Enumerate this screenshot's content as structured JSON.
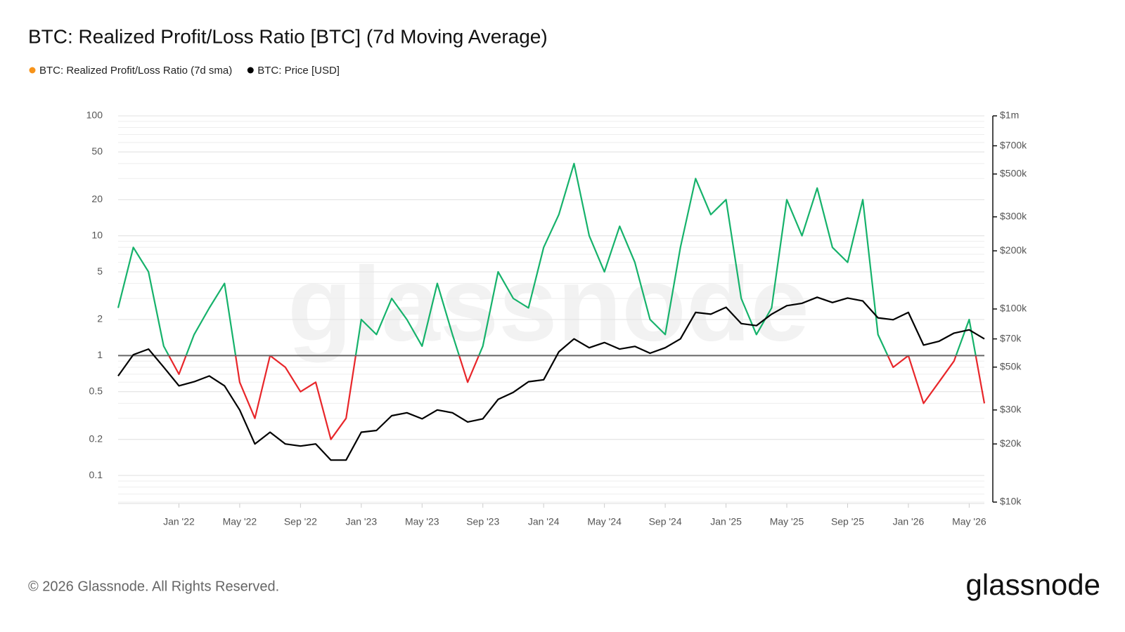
{
  "chart_data": {
    "type": "line",
    "title": "BTC: Realized Profit/Loss Ratio [BTC] (7d Moving Average)",
    "watermark": "glassnode",
    "footer": "© 2026 Glassnode. All Rights Reserved.",
    "brand": "glassnode",
    "x": [
      "2021-09",
      "2021-10",
      "2021-11",
      "2021-12",
      "2022-01",
      "2022-02",
      "2022-03",
      "2022-04",
      "2022-05",
      "2022-06",
      "2022-07",
      "2022-08",
      "2022-09",
      "2022-10",
      "2022-11",
      "2022-12",
      "2023-01",
      "2023-02",
      "2023-03",
      "2023-04",
      "2023-05",
      "2023-06",
      "2023-07",
      "2023-08",
      "2023-09",
      "2023-10",
      "2023-11",
      "2023-12",
      "2024-01",
      "2024-02",
      "2024-03",
      "2024-04",
      "2024-05",
      "2024-06",
      "2024-07",
      "2024-08",
      "2024-09",
      "2024-10",
      "2024-11",
      "2024-12",
      "2025-01",
      "2025-02",
      "2025-03",
      "2025-04",
      "2025-05",
      "2025-06",
      "2025-07",
      "2025-08",
      "2025-09",
      "2025-10",
      "2025-11",
      "2025-12",
      "2026-01",
      "2026-02",
      "2026-03",
      "2026-04",
      "2026-05",
      "2026-06"
    ],
    "xlim": [
      "2021-09",
      "2026-06"
    ],
    "xticks": [
      {
        "value": "2022-01",
        "label": "Jan '22"
      },
      {
        "value": "2022-05",
        "label": "May '22"
      },
      {
        "value": "2022-09",
        "label": "Sep '22"
      },
      {
        "value": "2023-01",
        "label": "Jan '23"
      },
      {
        "value": "2023-05",
        "label": "May '23"
      },
      {
        "value": "2023-09",
        "label": "Sep '23"
      },
      {
        "value": "2024-01",
        "label": "Jan '24"
      },
      {
        "value": "2024-05",
        "label": "May '24"
      },
      {
        "value": "2024-09",
        "label": "Sep '24"
      },
      {
        "value": "2025-01",
        "label": "Jan '25"
      },
      {
        "value": "2025-05",
        "label": "May '25"
      },
      {
        "value": "2025-09",
        "label": "Sep '25"
      },
      {
        "value": "2026-01",
        "label": "Jan '26"
      },
      {
        "value": "2026-05",
        "label": "May '26"
      }
    ],
    "ylim": [
      0.06,
      100
    ],
    "yticks": [
      100,
      50,
      20,
      10,
      5,
      2,
      1,
      0.5,
      0.2,
      0.1
    ],
    "y2lim": [
      10000,
      1000000
    ],
    "y2ticks": [
      {
        "value": 1000000,
        "label": "$1m"
      },
      {
        "value": 700000,
        "label": "$700k"
      },
      {
        "value": 500000,
        "label": "$500k"
      },
      {
        "value": 300000,
        "label": "$300k"
      },
      {
        "value": 200000,
        "label": "$200k"
      },
      {
        "value": 100000,
        "label": "$100k"
      },
      {
        "value": 70000,
        "label": "$70k"
      },
      {
        "value": 50000,
        "label": "$50k"
      },
      {
        "value": 30000,
        "label": "$30k"
      },
      {
        "value": 20000,
        "label": "$20k"
      },
      {
        "value": 10000,
        "label": "$10k"
      }
    ],
    "log_scale": true,
    "grid": true,
    "minor_grid": true,
    "reference_line": 1,
    "series": [
      {
        "name": "BTC: Realized Profit/Loss Ratio (7d sma)",
        "color": "#f7931a",
        "above_color": "#16b26b",
        "below_color": "#e8262a",
        "values": [
          2.5,
          8,
          5,
          1.2,
          0.7,
          1.5,
          2.5,
          4,
          0.6,
          0.3,
          1.0,
          0.8,
          0.5,
          0.6,
          0.2,
          0.3,
          2,
          1.5,
          3,
          2,
          1.2,
          4,
          1.5,
          0.6,
          1.2,
          5,
          3,
          2.5,
          8,
          15,
          40,
          10,
          5,
          12,
          6,
          2,
          1.5,
          8,
          30,
          15,
          20,
          3,
          1.5,
          2.5,
          20,
          10,
          25,
          8,
          6,
          20,
          1.5,
          0.8,
          1.0,
          0.4,
          0.6,
          0.9,
          2,
          0.4
        ]
      },
      {
        "name": "BTC: Price [USD]",
        "color": "#000000",
        "axis": "y2",
        "values": [
          45000,
          58000,
          62000,
          50000,
          40000,
          42000,
          45000,
          40000,
          30000,
          20000,
          23000,
          20000,
          19500,
          20000,
          16500,
          16500,
          23000,
          23500,
          28000,
          29000,
          27000,
          30000,
          29000,
          26000,
          27000,
          34000,
          37000,
          42000,
          43000,
          60000,
          70000,
          63000,
          67000,
          62000,
          64000,
          59000,
          63000,
          70000,
          96000,
          94000,
          102000,
          84000,
          82000,
          94000,
          104000,
          107000,
          115000,
          108000,
          114000,
          110000,
          90000,
          88000,
          96000,
          65000,
          68000,
          75000,
          78000,
          70000
        ]
      }
    ]
  }
}
